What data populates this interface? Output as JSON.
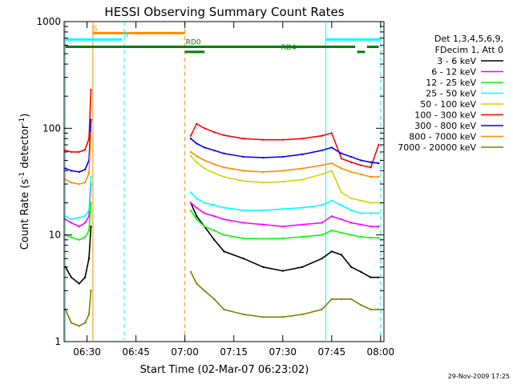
{
  "chart_data": {
    "type": "line",
    "title": "HESSI Observing Summary Count Rates",
    "xlabel": "Start Time (02-Mar-07 06:23:02)",
    "ylabel_main": "Count Rate (s",
    "ylabel_sup1": "-1",
    "ylabel_mid": " detector",
    "ylabel_sup2": "-1",
    "ylabel_end": ")",
    "yscale": "log",
    "xlim": [
      6.383,
      8.017
    ],
    "ylim": [
      1,
      1000
    ],
    "x_unit": "hours",
    "x_ticks": [
      {
        "v": 6.5,
        "label": "06:30"
      },
      {
        "v": 6.75,
        "label": "06:45"
      },
      {
        "v": 7.0,
        "label": "07:00"
      },
      {
        "v": 7.25,
        "label": "07:15"
      },
      {
        "v": 7.5,
        "label": "07:30"
      },
      {
        "v": 7.75,
        "label": "07:45"
      },
      {
        "v": 8.0,
        "label": "08:00"
      }
    ],
    "y_ticks": [
      {
        "v": 1,
        "label": "1"
      },
      {
        "v": 10,
        "label": "10"
      },
      {
        "v": 100,
        "label": "100"
      },
      {
        "v": 1000,
        "label": "1000"
      }
    ],
    "legend_header": [
      "Det 1,3,4,5,6,9,",
      "FDecim 1, Att 0"
    ],
    "series": [
      {
        "name": "3 - 6 keV",
        "color": "#000000",
        "segments": [
          {
            "x": [
              6.39,
              6.42,
              6.46,
              6.49,
              6.51,
              6.52
            ],
            "y": [
              5,
              4,
              3.5,
              4,
              6,
              12
            ]
          },
          {
            "x": [
              7.03,
              7.06,
              7.1,
              7.15,
              7.2,
              7.3,
              7.4,
              7.5,
              7.6,
              7.7,
              7.75,
              7.8,
              7.85,
              7.9,
              7.95,
              7.99
            ],
            "y": [
              20,
              15,
              12,
              9,
              7,
              6,
              5,
              4.6,
              5,
              6,
              7,
              6.5,
              5,
              4.5,
              4,
              4
            ]
          }
        ]
      },
      {
        "name": "6 - 12 keV",
        "color": "#ff00ff",
        "segments": [
          {
            "x": [
              6.39,
              6.42,
              6.46,
              6.49,
              6.51,
              6.52
            ],
            "y": [
              14,
              13,
              12,
              13,
              15,
              30
            ]
          },
          {
            "x": [
              7.03,
              7.06,
              7.1,
              7.15,
              7.2,
              7.3,
              7.4,
              7.5,
              7.6,
              7.7,
              7.75,
              7.8,
              7.85,
              7.9,
              7.95,
              7.99
            ],
            "y": [
              20,
              18,
              16,
              15,
              14,
              13,
              12.5,
              12,
              12.5,
              13,
              15,
              14,
              13,
              12.5,
              12,
              12
            ]
          }
        ]
      },
      {
        "name": "12 - 25 keV",
        "color": "#00ff00",
        "segments": [
          {
            "x": [
              6.39,
              6.42,
              6.46,
              6.49,
              6.51,
              6.52
            ],
            "y": [
              10,
              9.5,
              9,
              9.5,
              11,
              20
            ]
          },
          {
            "x": [
              7.03,
              7.06,
              7.1,
              7.15,
              7.2,
              7.3,
              7.4,
              7.5,
              7.6,
              7.7,
              7.75,
              7.8,
              7.85,
              7.9,
              7.95,
              7.99
            ],
            "y": [
              17,
              14,
              12,
              11,
              10,
              9.3,
              9.2,
              9.3,
              9.6,
              10,
              11,
              10.5,
              10,
              9.6,
              9.4,
              9.4
            ]
          }
        ]
      },
      {
        "name": "25 - 50 keV",
        "color": "#00ffff",
        "segments": [
          {
            "x": [
              6.39,
              6.42,
              6.46,
              6.49,
              6.51,
              6.52
            ],
            "y": [
              15,
              14,
              14.5,
              15,
              17,
              35
            ]
          },
          {
            "x": [
              7.03,
              7.06,
              7.1,
              7.15,
              7.2,
              7.3,
              7.4,
              7.5,
              7.6,
              7.7,
              7.75,
              7.8,
              7.85,
              7.9,
              7.95,
              7.99
            ],
            "y": [
              25,
              22,
              20,
              19,
              18,
              17,
              17,
              17.5,
              18,
              19,
              21,
              19,
              17,
              16,
              16,
              16
            ]
          }
        ]
      },
      {
        "name": "50 - 100 keV",
        "color": "#d4d400",
        "segments": [
          {
            "x": [
              7.03,
              7.06,
              7.1,
              7.15,
              7.2,
              7.3,
              7.4,
              7.5,
              7.6,
              7.7,
              7.75,
              7.8,
              7.85,
              7.9,
              7.95,
              7.99
            ],
            "y": [
              55,
              48,
              42,
              38,
              35,
              32,
              31,
              31.5,
              33,
              37,
              40,
              25,
              22,
              21,
              20,
              20
            ]
          }
        ]
      },
      {
        "name": "100 - 300 keV",
        "color": "#ff0000",
        "segments": [
          {
            "x": [
              6.39,
              6.42,
              6.46,
              6.49,
              6.51,
              6.52
            ],
            "y": [
              62,
              60,
              60,
              63,
              80,
              230
            ]
          },
          {
            "x": [
              7.03,
              7.06,
              7.1,
              7.15,
              7.2,
              7.3,
              7.4,
              7.5,
              7.6,
              7.7,
              7.75,
              7.8,
              7.85,
              7.9,
              7.95,
              7.99
            ],
            "y": [
              85,
              110,
              100,
              92,
              86,
              80,
              78,
              78,
              80,
              85,
              90,
              52,
              48,
              45,
              43,
              70
            ]
          }
        ]
      },
      {
        "name": "300 - 800 keV",
        "color": "#0000ff",
        "segments": [
          {
            "x": [
              6.39,
              6.42,
              6.46,
              6.49,
              6.51,
              6.52
            ],
            "y": [
              42,
              40,
              39,
              41,
              50,
              120
            ]
          },
          {
            "x": [
              7.03,
              7.06,
              7.1,
              7.15,
              7.2,
              7.3,
              7.4,
              7.5,
              7.6,
              7.7,
              7.75,
              7.8,
              7.85,
              7.9,
              7.95,
              7.99
            ],
            "y": [
              80,
              72,
              66,
              62,
              58,
              54,
              53,
              54,
              57,
              62,
              66,
              58,
              54,
              50,
              48,
              47
            ]
          }
        ]
      },
      {
        "name": "800 - 7000 keV",
        "color": "#ff8c00",
        "segments": [
          {
            "x": [
              6.39,
              6.42,
              6.46,
              6.49,
              6.51,
              6.52
            ],
            "y": [
              33,
              31,
              30,
              31,
              38,
              90
            ]
          },
          {
            "x": [
              7.03,
              7.06,
              7.1,
              7.15,
              7.2,
              7.3,
              7.4,
              7.5,
              7.6,
              7.7,
              7.75,
              7.8,
              7.85,
              7.9,
              7.95,
              7.99
            ],
            "y": [
              60,
              55,
              50,
              46,
              43,
              40,
              39,
              40,
              42,
              45,
              47,
              42,
              39,
              37,
              35,
              35
            ]
          }
        ]
      },
      {
        "name": "7000 - 20000 keV",
        "color": "#808000",
        "segments": [
          {
            "x": [
              6.39,
              6.42,
              6.46,
              6.49,
              6.51,
              6.52
            ],
            "y": [
              2,
              1.5,
              1.4,
              1.5,
              1.8,
              3
            ]
          },
          {
            "x": [
              7.03,
              7.06,
              7.1,
              7.15,
              7.2,
              7.3,
              7.4,
              7.5,
              7.6,
              7.7,
              7.75,
              7.8,
              7.85,
              7.9,
              7.95,
              7.99
            ],
            "y": [
              4.5,
              3.5,
              3,
              2.5,
              2,
              1.8,
              1.7,
              1.7,
              1.8,
              2,
              2.5,
              2.5,
              2.5,
              2.2,
              2,
              2
            ]
          }
        ]
      }
    ],
    "flags": [
      {
        "label": "S",
        "color": "#ff8c00",
        "level": 780,
        "segments": [
          [
            6.53,
            7.0
          ]
        ]
      },
      {
        "label": "N",
        "color": "#00ffff",
        "level": 680,
        "segments": [
          [
            6.39,
            6.68
          ],
          [
            7.72,
            8.0
          ]
        ]
      },
      {
        "label": "RD0",
        "color": "#008000",
        "level": 580,
        "segments": [
          [
            6.39,
            7.87
          ],
          [
            7.93,
            7.99
          ]
        ]
      },
      {
        "label": "RD4",
        "color": "#008000",
        "level": 520,
        "segments": [
          [
            7.0,
            7.1
          ],
          [
            7.88,
            7.92
          ]
        ]
      }
    ],
    "vlines": [
      {
        "x": 6.39,
        "color": "#00ffff",
        "dash": false
      },
      {
        "x": 6.53,
        "color": "#ff8c00",
        "dash": false
      },
      {
        "x": 6.69,
        "color": "#00ffff",
        "dash": true
      },
      {
        "x": 7.0,
        "color": "#ff8c00",
        "dash": true
      },
      {
        "x": 7.72,
        "color": "#00ffff",
        "dash": false
      },
      {
        "x": 8.0,
        "color": "#00ffff",
        "dash": true
      }
    ]
  },
  "footer_timestamp": "29-Nov-2009 17:25"
}
